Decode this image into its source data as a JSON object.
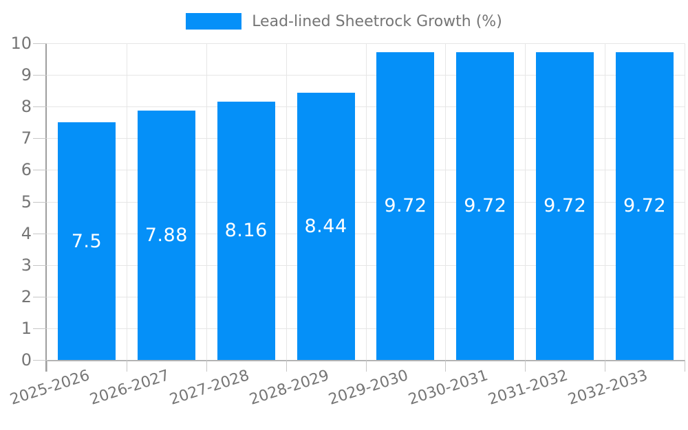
{
  "chart_data": {
    "type": "bar",
    "title": "Lead-lined Sheetrock Growth (%)",
    "categories": [
      "2025-2026",
      "2026-2027",
      "2027-2028",
      "2028-2029",
      "2029-2030",
      "2030-2031",
      "2031-2032",
      "2032-2033"
    ],
    "values": [
      7.5,
      7.88,
      8.16,
      8.44,
      9.72,
      9.72,
      9.72,
      9.72
    ],
    "bar_labels": [
      "7.5",
      "7.88",
      "8.16",
      "8.44",
      "9.72",
      "9.72",
      "9.72",
      "9.72"
    ],
    "xlabel": "",
    "ylabel": "",
    "ylim": [
      0,
      10
    ],
    "y_ticks": [
      0,
      1,
      2,
      3,
      4,
      5,
      6,
      7,
      8,
      9,
      10
    ],
    "grid": true,
    "legend_position": "top",
    "colors": {
      "bar": "#0590f8",
      "axis_text": "#757575",
      "value_label": "#ffffff",
      "gridline": "#e6e6e6",
      "axis_line_y": "#9e9e9e",
      "axis_line_x": "#b3b3b3",
      "tick": "#c6c6c6",
      "background": "#ffffff"
    }
  }
}
